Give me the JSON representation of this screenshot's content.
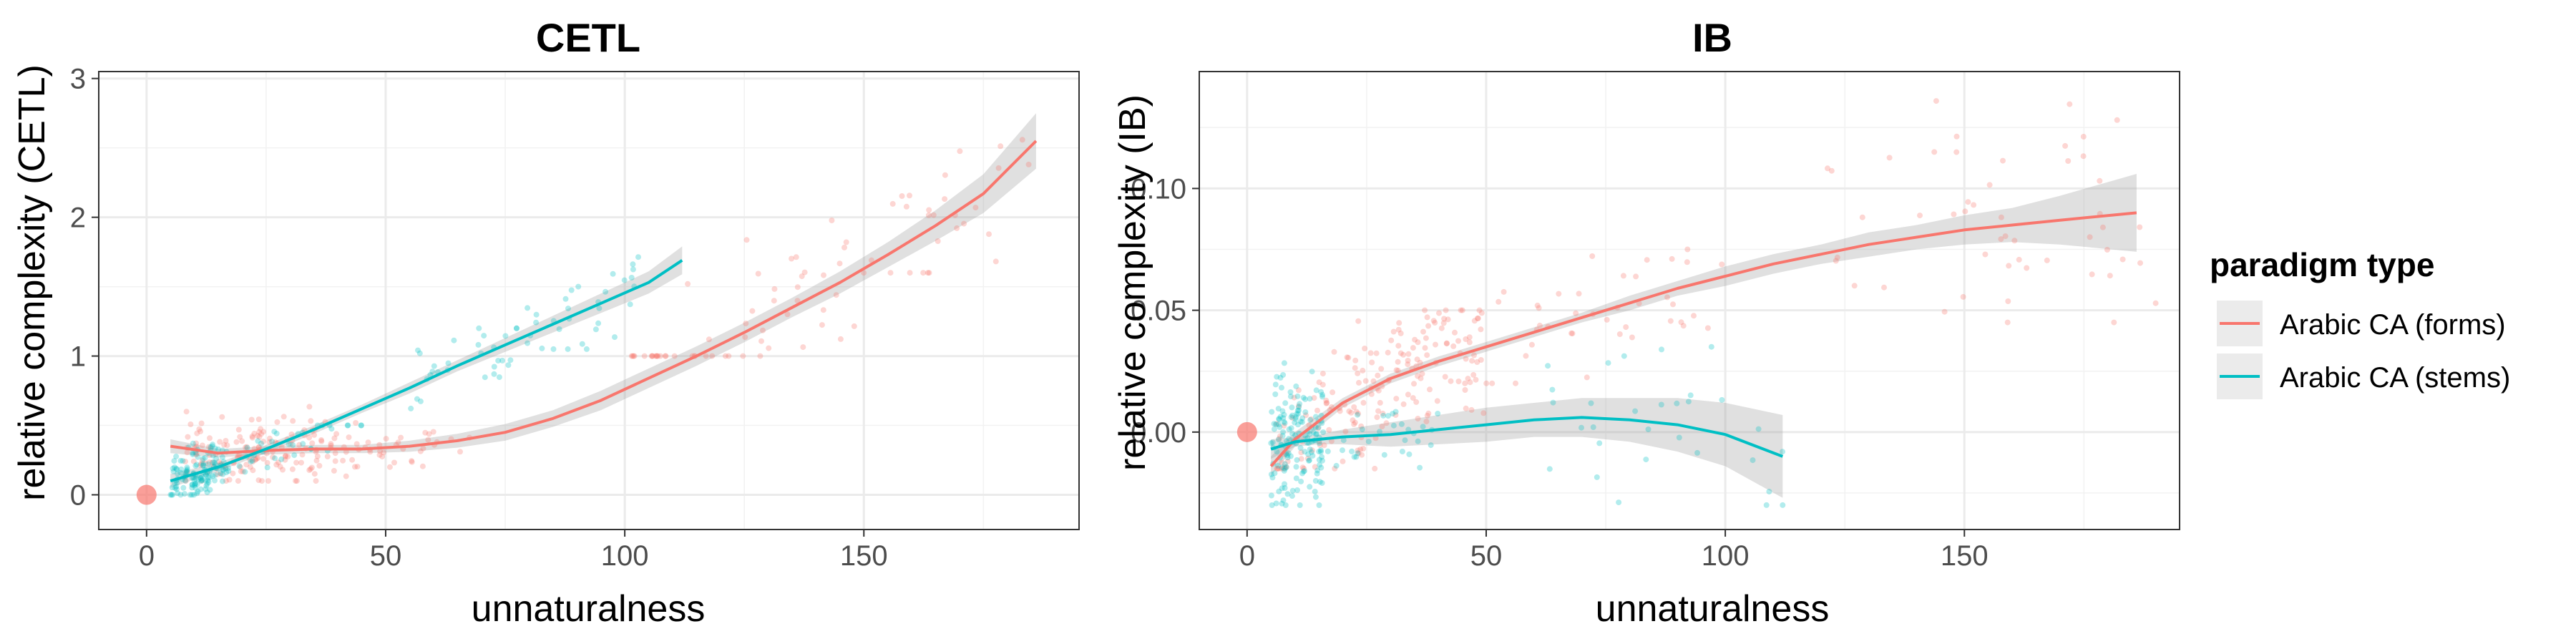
{
  "legend": {
    "title": "paradigm type",
    "entries": [
      {
        "label": "Arabic CA (forms)",
        "color": "#F8766D"
      },
      {
        "label": "Arabic CA (stems)",
        "color": "#00BFC4"
      }
    ]
  },
  "chart_data": [
    {
      "type": "scatter",
      "title": "CETL",
      "xlabel": "unnaturalness",
      "ylabel": "relative complexity (CETL)",
      "xlim": [
        -10,
        195
      ],
      "ylim": [
        -0.25,
        3.05
      ],
      "x_ticks": [
        0,
        50,
        100,
        150
      ],
      "y_ticks": [
        0,
        1,
        2,
        3
      ],
      "grid": true,
      "reference_point": {
        "x": 0,
        "y": 0,
        "color": "#F8766D"
      },
      "series": [
        {
          "name": "Arabic CA (forms)",
          "color": "#F8766D",
          "fit": {
            "x": [
              5,
              15,
              25,
              35,
              45,
              55,
              65,
              75,
              85,
              95,
              105,
              115,
              125,
              135,
              145,
              155,
              165,
              175,
              186
            ],
            "y": [
              0.35,
              0.3,
              0.32,
              0.33,
              0.33,
              0.35,
              0.39,
              0.45,
              0.55,
              0.68,
              0.84,
              1.0,
              1.17,
              1.35,
              1.53,
              1.73,
              1.94,
              2.17,
              2.55
            ],
            "band": [
              0.05,
              0.03,
              0.03,
              0.03,
              0.03,
              0.04,
              0.05,
              0.06,
              0.06,
              0.07,
              0.07,
              0.07,
              0.07,
              0.07,
              0.08,
              0.09,
              0.11,
              0.14,
              0.2
            ]
          },
          "point_clusters": [
            {
              "x": [
                8,
                45
              ],
              "y": [
                0.1,
                0.65
              ],
              "n": 170,
              "seed": 11
            },
            {
              "x": [
                45,
                70
              ],
              "y": [
                0.2,
                0.55
              ],
              "n": 30,
              "seed": 12
            },
            {
              "x": [
                100,
                150
              ],
              "y": [
                1.0,
                2.05
              ],
              "n": 55,
              "seed": 13
            },
            {
              "x": [
                148,
                187
              ],
              "y": [
                1.6,
                2.9
              ],
              "n": 28,
              "seed": 14
            }
          ]
        },
        {
          "name": "Arabic CA (stems)",
          "color": "#00BFC4",
          "fit": {
            "x": [
              5,
              15,
              25,
              35,
              45,
              55,
              65,
              75,
              85,
              95,
              105,
              112
            ],
            "y": [
              0.1,
              0.2,
              0.33,
              0.47,
              0.62,
              0.77,
              0.93,
              1.08,
              1.23,
              1.38,
              1.53,
              1.69
            ],
            "band": [
              0.05,
              0.03,
              0.03,
              0.03,
              0.03,
              0.04,
              0.04,
              0.05,
              0.06,
              0.07,
              0.08,
              0.1
            ]
          },
          "point_clusters": [
            {
              "x": [
                5,
                17
              ],
              "y": [
                0.0,
                0.42
              ],
              "n": 130,
              "seed": 21
            },
            {
              "x": [
                17,
                45
              ],
              "y": [
                0.15,
                0.5
              ],
              "n": 35,
              "seed": 22
            },
            {
              "x": [
                55,
                80
              ],
              "y": [
                0.6,
                1.2
              ],
              "n": 30,
              "seed": 23
            },
            {
              "x": [
                78,
                103
              ],
              "y": [
                1.05,
                1.85
              ],
              "n": 30,
              "seed": 24
            }
          ]
        }
      ]
    },
    {
      "type": "scatter",
      "title": "IB",
      "xlabel": "unnaturalness",
      "ylabel": "relative complexity (IB)",
      "xlim": [
        -10,
        195
      ],
      "ylim": [
        -0.04,
        0.148
      ],
      "x_ticks": [
        0,
        50,
        100,
        150
      ],
      "y_ticks": [
        0.0,
        0.05,
        0.1
      ],
      "y_tick_labels": [
        "0.00",
        "0.05",
        "0.10"
      ],
      "grid": true,
      "reference_point": {
        "x": 0,
        "y": 0,
        "color": "#F8766D"
      },
      "series": [
        {
          "name": "Arabic CA (forms)",
          "color": "#F8766D",
          "fit": {
            "x": [
              5,
              10,
              20,
              30,
              40,
              50,
              60,
              70,
              80,
              90,
              100,
              110,
              120,
              130,
              140,
              150,
              160,
              170,
              186
            ],
            "y": [
              -0.014,
              -0.003,
              0.012,
              0.022,
              0.029,
              0.035,
              0.041,
              0.047,
              0.053,
              0.059,
              0.064,
              0.069,
              0.073,
              0.077,
              0.08,
              0.083,
              0.085,
              0.087,
              0.09
            ],
            "band": [
              0.004,
              0.003,
              0.002,
              0.002,
              0.002,
              0.002,
              0.002,
              0.002,
              0.003,
              0.003,
              0.004,
              0.004,
              0.004,
              0.005,
              0.005,
              0.006,
              0.007,
              0.01,
              0.016
            ]
          },
          "point_clusters": [
            {
              "x": [
                6,
                50
              ],
              "y": [
                -0.015,
                0.05
              ],
              "n": 190,
              "seed": 31
            },
            {
              "x": [
                50,
                100
              ],
              "y": [
                0.02,
                0.075
              ],
              "n": 40,
              "seed": 32
            },
            {
              "x": [
                118,
                190
              ],
              "y": [
                0.045,
                0.14
              ],
              "n": 50,
              "seed": 33
            }
          ]
        },
        {
          "name": "Arabic CA (stems)",
          "color": "#00BFC4",
          "fit": {
            "x": [
              5,
              10,
              15,
              20,
              30,
              40,
              50,
              60,
              70,
              80,
              90,
              100,
              112
            ],
            "y": [
              -0.007,
              -0.004,
              -0.003,
              -0.002,
              -0.001,
              0.001,
              0.003,
              0.005,
              0.006,
              0.005,
              0.003,
              -0.001,
              -0.01
            ],
            "band": [
              0.004,
              0.002,
              0.002,
              0.003,
              0.005,
              0.006,
              0.007,
              0.007,
              0.008,
              0.009,
              0.011,
              0.013,
              0.017
            ]
          },
          "point_clusters": [
            {
              "x": [
                5,
                16
              ],
              "y": [
                -0.03,
                0.03
              ],
              "n": 160,
              "seed": 41
            },
            {
              "x": [
                16,
                40
              ],
              "y": [
                -0.02,
                0.02
              ],
              "n": 30,
              "seed": 42
            },
            {
              "x": [
                60,
                112
              ],
              "y": [
                -0.035,
                0.035
              ],
              "n": 30,
              "seed": 43
            }
          ]
        }
      ]
    }
  ]
}
